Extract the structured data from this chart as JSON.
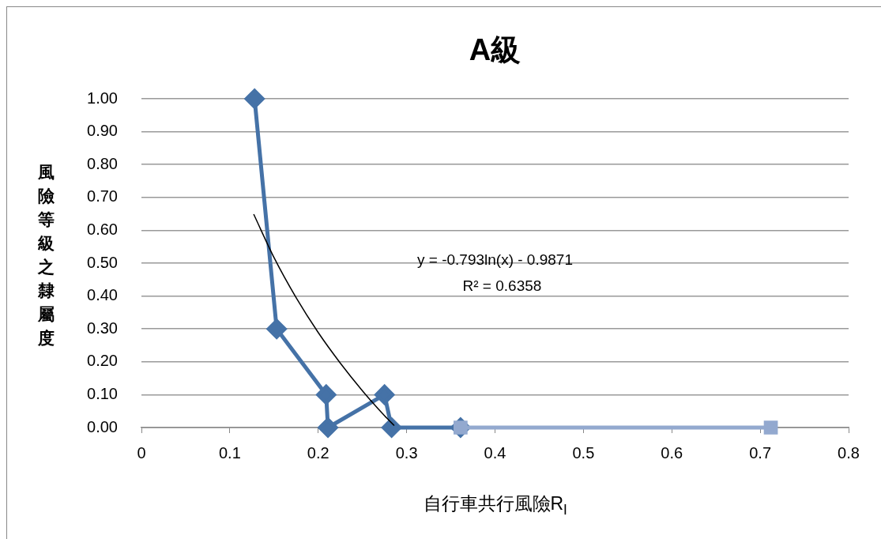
{
  "chart_data": {
    "type": "scatter",
    "title": "A級",
    "xlabel": "自行車共行風險R$_{l}$",
    "ylabel": "風險等級之隸屬度",
    "xlim": [
      0,
      0.8
    ],
    "xticks": [
      0,
      0.1,
      0.2,
      0.3,
      0.4,
      0.5,
      0.6,
      0.7,
      0.8
    ],
    "ylim": [
      0,
      1
    ],
    "yticks": [
      {
        "value": 0,
        "label": "0.00"
      },
      {
        "value": 0.1,
        "label": "0.10"
      },
      {
        "value": 0.2,
        "label": "0.20"
      },
      {
        "value": 0.3,
        "label": "0.30"
      },
      {
        "value": 0.4,
        "label": "0.40"
      },
      {
        "value": 0.5,
        "label": "0.50"
      },
      {
        "value": 0.6,
        "label": "0.60"
      },
      {
        "value": 0.7,
        "label": "0.70"
      },
      {
        "value": 0.8,
        "label": "0.80"
      },
      {
        "value": 0.9,
        "label": "0.90"
      },
      {
        "value": 1,
        "label": "1.00"
      }
    ],
    "grid": "y",
    "legend": false,
    "line_style": "solid",
    "annotations": [
      "y = -0.793ln(x) - 0.9871",
      "R² = 0.6358"
    ],
    "series": [
      {
        "type": "line",
        "color": "#4572a7",
        "marker": "diamond",
        "x": [
          0.128,
          0.153,
          0.209,
          0.211,
          0.275,
          0.283,
          0.361
        ],
        "values": [
          1,
          0.3,
          0.1,
          0,
          0.1,
          0,
          0
        ]
      },
      {
        "type": "line",
        "color": "#93a9cf",
        "marker": "square",
        "x": [
          0.361,
          0.712
        ],
        "values": [
          0,
          0
        ]
      },
      {
        "type": "line",
        "color": "#000000",
        "marker": "none",
        "x": [
          0.127,
          0.15,
          0.175,
          0.2,
          0.225,
          0.25,
          0.275,
          0.286
        ],
        "values": [
          0.649,
          0.517,
          0.395,
          0.289,
          0.196,
          0.112,
          0.036,
          0.006
        ]
      }
    ]
  }
}
